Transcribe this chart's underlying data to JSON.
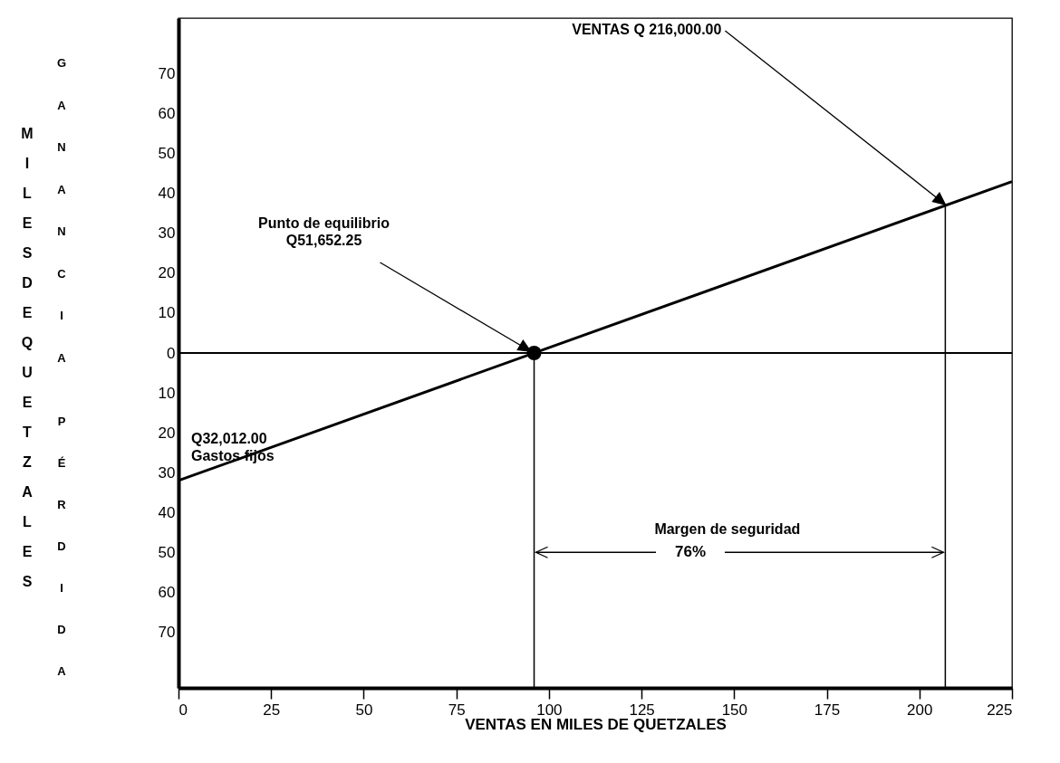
{
  "chart_data": {
    "type": "line",
    "xlabel": "VENTAS EN MILES DE QUETZALES",
    "ylabel": "MILES DE QUETZALES",
    "series": [
      {
        "type": "line",
        "color": "#000000",
        "x": [
          0,
          225
        ],
        "values": [
          -32,
          43
        ]
      },
      {
        "type": "scatter",
        "color": "#000000",
        "marker": "circle",
        "x": [
          96
        ],
        "values": [
          0
        ]
      }
    ],
    "xlim": [
      0,
      225
    ],
    "xticks": [
      0,
      25,
      50,
      75,
      100,
      125,
      150,
      175,
      200,
      225
    ],
    "ylim": [
      -84,
      84
    ],
    "yticks": [
      {
        "value": -70,
        "label": "70"
      },
      {
        "value": -60,
        "label": "60"
      },
      {
        "value": -50,
        "label": "50"
      },
      {
        "value": -40,
        "label": "40"
      },
      {
        "value": -30,
        "label": "30"
      },
      {
        "value": -20,
        "label": "20"
      },
      {
        "value": -10,
        "label": "10"
      },
      0,
      10,
      20,
      30,
      40,
      50,
      60,
      70
    ],
    "ref_lines": [
      {
        "axis": "y",
        "value": 0
      },
      {
        "axis": "x",
        "value": 96
      },
      {
        "axis": "x",
        "value": 207
      }
    ],
    "annotations": [
      {
        "text": "Punto de equilibrio\nQ51,652.25",
        "x": 96,
        "y": 0
      },
      {
        "text": "VENTAS Q 216,000.00",
        "x": 207,
        "y": 37
      },
      {
        "text": "Q32,012.00\nGastos fijos",
        "x": 0,
        "y": -32
      },
      {
        "text": "Margen de seguridad\n76%",
        "x": 207,
        "y": -50
      },
      "GANANCIA",
      "PÉRDIDA"
    ],
    "grid": false
  }
}
